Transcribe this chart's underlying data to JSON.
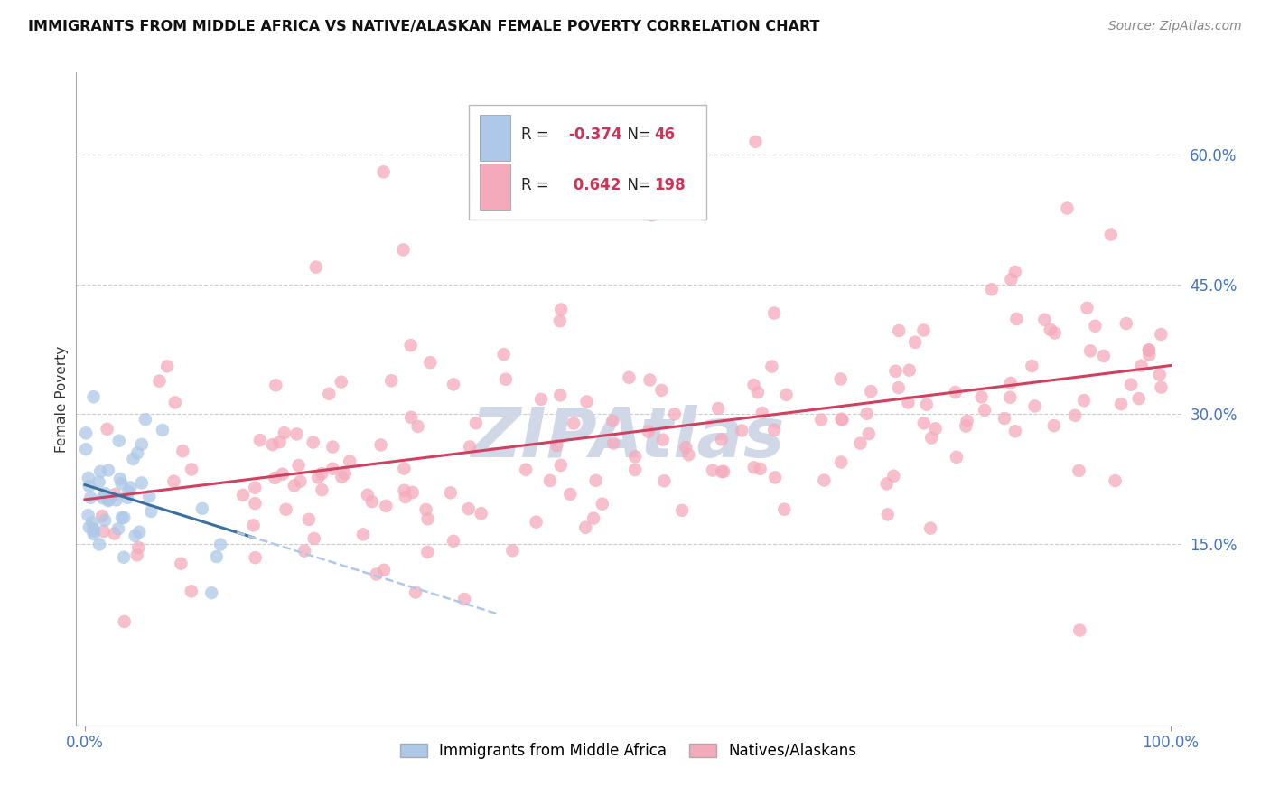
{
  "title": "IMMIGRANTS FROM MIDDLE AFRICA VS NATIVE/ALASKAN FEMALE POVERTY CORRELATION CHART",
  "source": "Source: ZipAtlas.com",
  "ylabel": "Female Poverty",
  "y_tick_values": [
    0.15,
    0.3,
    0.45,
    0.6
  ],
  "legend1_label": "Immigrants from Middle Africa",
  "legend2_label": "Natives/Alaskans",
  "blue_color": "#adc8e8",
  "blue_line_color": "#3a6fa0",
  "blue_dash_color": "#adc8e8",
  "pink_color": "#f5aabb",
  "pink_line_color": "#d04060",
  "watermark_color": "#d0d8e8",
  "title_fontsize": 11.5,
  "source_fontsize": 10,
  "tick_fontsize": 12,
  "legend_fontsize": 12
}
